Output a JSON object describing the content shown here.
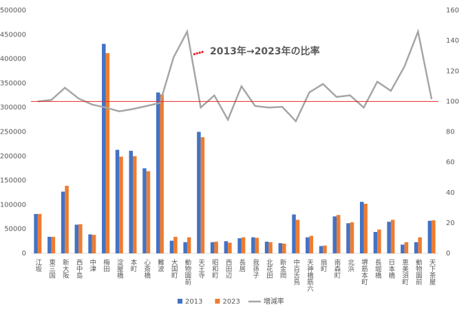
{
  "chart_data": {
    "type": "bar-line",
    "annotation": "2013年→2023年の比率",
    "categories": [
      "江坂",
      "東三国",
      "新大阪",
      "西中島",
      "中津",
      "梅田",
      "淀屋橋",
      "本町",
      "心斎橋",
      "難波",
      "大国町",
      "動物園前",
      "天王寺",
      "昭和町",
      "西田辺",
      "長居",
      "我孫子",
      "北花田",
      "新金岡",
      "中百舌鳥",
      "天神橋筋六",
      "扇町",
      "南森町",
      "北浜",
      "堺筋本町",
      "長堀橋",
      "日本橋",
      "恵美須町",
      "動物園前",
      "天下茶屋"
    ],
    "series": [
      {
        "name": "2013",
        "type": "bar",
        "color": "#4472c4",
        "values": [
          81000,
          34000,
          127000,
          59000,
          39000,
          431000,
          213000,
          211000,
          175000,
          331000,
          26000,
          23000,
          250000,
          23000,
          25000,
          31000,
          33000,
          24000,
          21000,
          80000,
          33000,
          15000,
          76000,
          62000,
          106000,
          44000,
          65000,
          18000,
          23000,
          67000
        ]
      },
      {
        "name": "2023",
        "type": "bar",
        "color": "#ed7d31",
        "values": [
          81000,
          34000,
          139000,
          60000,
          38000,
          412000,
          199000,
          200000,
          169000,
          327000,
          34000,
          33000,
          239000,
          24000,
          22000,
          33000,
          32000,
          23000,
          20000,
          69000,
          36000,
          16000,
          79000,
          64000,
          102000,
          49000,
          69000,
          23000,
          33000,
          68000
        ]
      },
      {
        "name": "増減率",
        "type": "line",
        "axis": "y2",
        "color": "#a5a5a5",
        "values": [
          100,
          101,
          109,
          102,
          98,
          96,
          93.5,
          95,
          97,
          99,
          129,
          146,
          96,
          104,
          88,
          110,
          97,
          96,
          96.5,
          87,
          106,
          111.5,
          103,
          104,
          96,
          113,
          107,
          123,
          146,
          101.5
        ]
      }
    ],
    "ylim": [
      0,
      500000
    ],
    "yticks": [
      0,
      50000,
      100000,
      150000,
      200000,
      250000,
      300000,
      350000,
      400000,
      450000,
      500000
    ],
    "y2lim": [
      0,
      160
    ],
    "y2ticks": [
      0,
      20,
      40,
      60,
      80,
      100,
      120,
      140,
      160
    ],
    "reference_line": {
      "axis": "y2",
      "value": 100,
      "color": "#e8252a"
    },
    "annotation_color": "#e8252a",
    "grid": false,
    "legend": "bottom"
  }
}
